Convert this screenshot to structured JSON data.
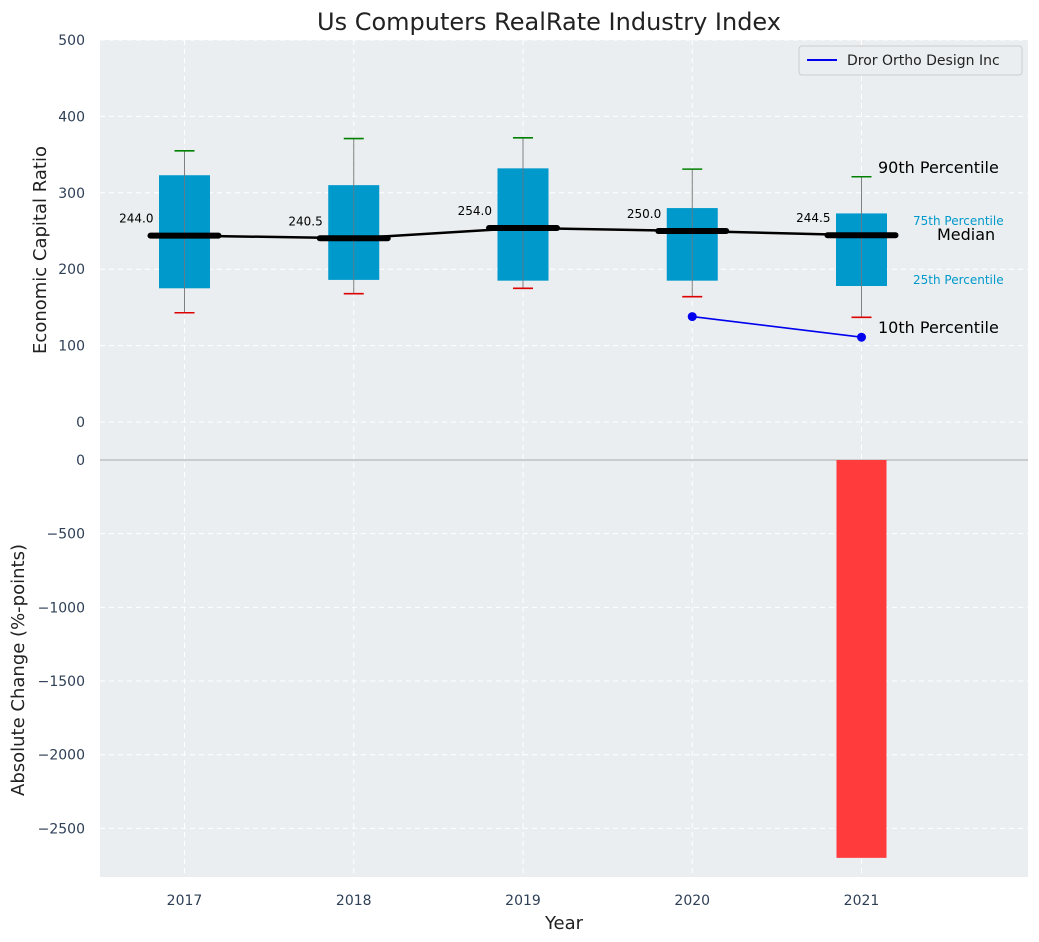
{
  "chart_data": [
    {
      "type": "box",
      "title": "Us Computers RealRate Industry Index",
      "ylabel": "Economic Capital Ratio",
      "ylim": [
        0,
        500
      ],
      "yticks": [
        0,
        100,
        200,
        300,
        400,
        500
      ],
      "categories": [
        "2017",
        "2018",
        "2019",
        "2020",
        "2021"
      ],
      "p10": [
        143,
        168,
        175,
        164,
        137
      ],
      "p25": [
        175,
        186,
        185,
        185,
        178
      ],
      "median": [
        244.0,
        240.5,
        254.0,
        250.0,
        244.5
      ],
      "median_labels": [
        "244.0",
        "240.5",
        "254.0",
        "250.0",
        "244.5"
      ],
      "p75": [
        323,
        310,
        332,
        280,
        273
      ],
      "p90": [
        355,
        371,
        372,
        331,
        321
      ],
      "series": [
        {
          "name": "Dror Ortho Design Inc",
          "x": [
            "2020",
            "2021"
          ],
          "values": [
            138,
            111
          ],
          "color": "#0000ee"
        }
      ],
      "annotations": {
        "p90": "90th Percentile",
        "p75": "75th Percentile",
        "median": "Median",
        "p25": "25th Percentile",
        "p10": "10th Percentile"
      },
      "grid": true,
      "legend": "top-right"
    },
    {
      "type": "bar",
      "ylabel": "Absolute Change (%-points)",
      "xlabel": "Year",
      "categories": [
        "2017",
        "2018",
        "2019",
        "2020",
        "2021"
      ],
      "values": [
        null,
        null,
        null,
        null,
        -2700
      ],
      "ylim": [
        -2830,
        0
      ],
      "yticks": [
        0,
        -500,
        -1000,
        -1500,
        -2000,
        -2500
      ],
      "ytick_labels": [
        "0",
        "−500",
        "−1000",
        "−1500",
        "−2000",
        "−2500"
      ],
      "grid": true
    }
  ],
  "colors": {
    "box": "#0099cc",
    "median_line": "#000000",
    "p90_cap": "#008000",
    "p10_cap": "#dd0000",
    "bar_negative": "#ff3b3b",
    "plot_bg": "#eaeef0"
  }
}
